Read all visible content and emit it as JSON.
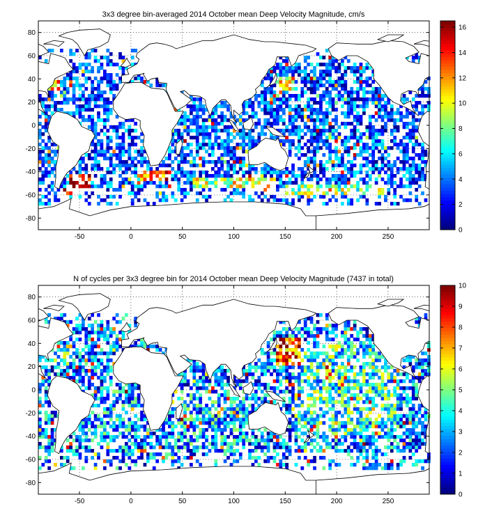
{
  "figure": {
    "panels": [
      {
        "title": "3x3 degree bin-averaged 2014 October mean Deep Velocity Magnitude, cm/s",
        "colorbar_ticks": [
          "0",
          "2",
          "4",
          "6",
          "8",
          "10",
          "12",
          "14",
          "16"
        ]
      },
      {
        "title": "N of cycles per 3x3 degree bin for 2014 October mean Deep Velocity Magnitude (7437 in total)",
        "colorbar_ticks": [
          "0",
          "1",
          "2",
          "3",
          "4",
          "5",
          "6",
          "7",
          "8",
          "9",
          "10"
        ]
      }
    ],
    "xtick_labels": [
      "-50",
      "0",
      "50",
      "100",
      "150",
      "200",
      "250"
    ],
    "ytick_labels": [
      "80",
      "60",
      "40",
      "20",
      "0",
      "-20",
      "-40",
      "-60",
      "-80"
    ]
  },
  "chart_data": [
    {
      "type": "heatmap",
      "title": "3x3 degree bin-averaged 2014 October mean Deep Velocity Magnitude, cm/s",
      "xlabel": "",
      "ylabel": "",
      "xlim": [
        -90,
        290
      ],
      "ylim": [
        -90,
        90
      ],
      "xticks": [
        -50,
        0,
        50,
        100,
        150,
        200,
        250
      ],
      "yticks": [
        -80,
        -60,
        -40,
        -20,
        0,
        20,
        40,
        60,
        80
      ],
      "bin_size_deg": 3,
      "colorbar": {
        "min": 0,
        "max": 16.5,
        "ticks": [
          0,
          2,
          4,
          6,
          8,
          10,
          12,
          14,
          16
        ],
        "colormap": "jet"
      },
      "grid": true,
      "regions": [
        {
          "lon": [
            -60,
            -40
          ],
          "lat": [
            -57,
            -42
          ],
          "value": 15
        },
        {
          "lon": [
            -66,
            -54
          ],
          "lat": [
            -60,
            -54
          ],
          "value": 14
        },
        {
          "lon": [
            10,
            40
          ],
          "lat": [
            -48,
            -39
          ],
          "value": 13
        },
        {
          "lon": [
            -80,
            -70
          ],
          "lat": [
            30,
            45
          ],
          "value": 12
        },
        {
          "lon": [
            140,
            160
          ],
          "lat": [
            30,
            42
          ],
          "value": 10
        },
        {
          "lon": [
            60,
            140
          ],
          "lat": [
            -54,
            -45
          ],
          "value": 9
        },
        {
          "lon": [
            150,
            250
          ],
          "lat": [
            -60,
            -50
          ],
          "value": 8
        },
        {
          "lon": [
            160,
            260
          ],
          "lat": [
            20,
            60
          ],
          "value": 3
        },
        {
          "lon": [
            160,
            260
          ],
          "lat": [
            -40,
            20
          ],
          "value": 3
        }
      ]
    },
    {
      "type": "heatmap",
      "title": "N of cycles per 3x3 degree bin for 2014 October mean Deep Velocity Magnitude (7437 in total)",
      "xlabel": "",
      "ylabel": "",
      "xlim": [
        -90,
        290
      ],
      "ylim": [
        -90,
        90
      ],
      "xticks": [
        -50,
        0,
        50,
        100,
        150,
        200,
        250
      ],
      "yticks": [
        -80,
        -60,
        -40,
        -20,
        0,
        20,
        40,
        60,
        80
      ],
      "bin_size_deg": 3,
      "total_cycles": 7437,
      "colorbar": {
        "min": 0,
        "max": 10,
        "ticks": [
          0,
          1,
          2,
          3,
          4,
          5,
          6,
          7,
          8,
          9,
          10
        ],
        "colormap": "jet"
      },
      "grid": true,
      "regions": [
        {
          "lon": [
            140,
            165
          ],
          "lat": [
            20,
            45
          ],
          "value": 8
        },
        {
          "lon": [
            -80,
            -60
          ],
          "lat": [
            20,
            40
          ],
          "value": 4
        },
        {
          "lon": [
            160,
            260
          ],
          "lat": [
            -40,
            40
          ],
          "value": 4
        },
        {
          "lon": [
            -40,
            20
          ],
          "lat": [
            -40,
            0
          ],
          "value": 3
        },
        {
          "lon": [
            40,
            110
          ],
          "lat": [
            -50,
            0
          ],
          "value": 3
        }
      ]
    }
  ]
}
